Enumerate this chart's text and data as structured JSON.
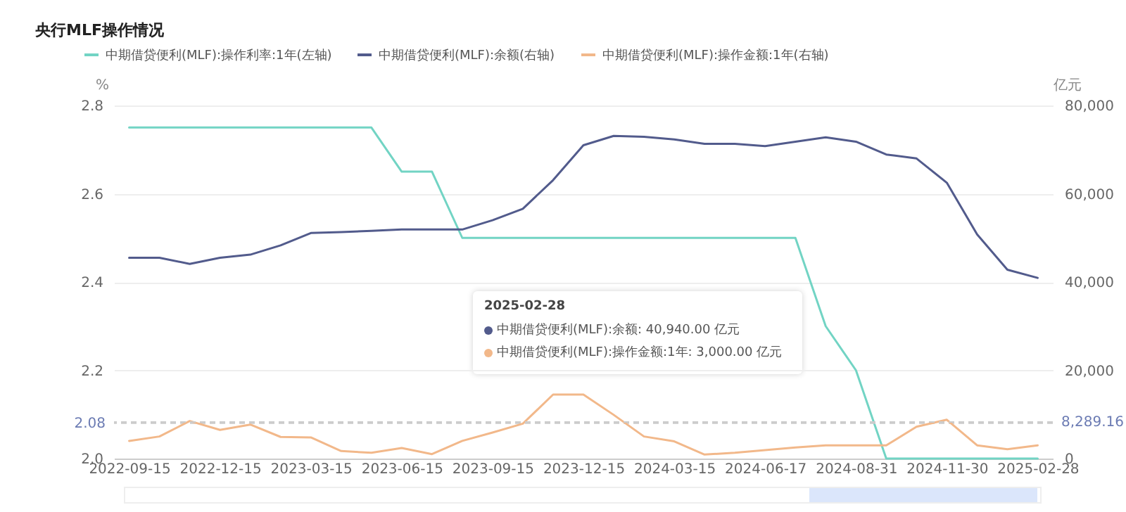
{
  "chart_data": {
    "type": "line",
    "title": "央行MLF操作情况",
    "ylabel": "%",
    "y2label": "亿元",
    "categories": [
      "2022-09-15",
      null,
      null,
      "2022-12-15",
      null,
      null,
      "2023-03-15",
      null,
      null,
      "2023-06-15",
      null,
      null,
      "2023-09-15",
      null,
      null,
      "2023-12-15",
      null,
      null,
      "2024-03-15",
      null,
      null,
      "2024-06-17",
      null,
      null,
      "2024-08-31",
      null,
      null,
      "2024-11-30",
      null,
      null,
      "2025-02-28"
    ],
    "series": [
      {
        "name": "中期借贷便利(MLF):操作利率:1年(左轴)",
        "color": "#72d4c4",
        "axis": "y",
        "values": [
          2.75,
          2.75,
          2.75,
          2.75,
          2.75,
          2.75,
          2.75,
          2.75,
          2.75,
          2.65,
          2.65,
          2.5,
          2.5,
          2.5,
          2.5,
          2.5,
          2.5,
          2.5,
          2.5,
          2.5,
          2.5,
          2.5,
          2.5,
          2.3,
          2.2,
          2.0,
          2.0,
          2.0,
          2.0,
          2.0,
          2.0
        ]
      },
      {
        "name": "中期借贷便利(MLF):余额(右轴)",
        "color": "#525b8c",
        "axis": "y2",
        "values": [
          45500,
          45500,
          44100,
          45500,
          46200,
          48300,
          51100,
          51300,
          51600,
          51900,
          51900,
          51900,
          54000,
          56600,
          63100,
          71000,
          73100,
          72900,
          72300,
          71300,
          71300,
          70800,
          71800,
          72800,
          71800,
          68900,
          68000,
          62500,
          50800,
          42800,
          40940
        ]
      },
      {
        "name": "中期借贷便利(MLF):操作金额:1年(右轴)",
        "color": "#f2b88a",
        "axis": "y2",
        "values": [
          4000,
          5000,
          8500,
          6500,
          7700,
          4900,
          4800,
          1700,
          1300,
          2400,
          1000,
          4000,
          5900,
          7900,
          14500,
          14500,
          9900,
          5000,
          3900,
          900,
          1300,
          1900,
          2500,
          3000,
          3000,
          3000,
          7200,
          8800,
          3000,
          2100,
          3000
        ]
      }
    ],
    "ylim": [
      2.0,
      2.8
    ],
    "yticks": [
      {
        "value": 2.0,
        "label": "2.0"
      },
      2.2,
      2.4,
      2.6,
      2.8
    ],
    "y2lim": [
      0,
      80000
    ],
    "y2ticks": [
      0,
      {
        "value": 20000,
        "label": "20,000"
      },
      {
        "value": 40000,
        "label": "40,000"
      },
      {
        "value": 60000,
        "label": "60,000"
      },
      {
        "value": 80000,
        "label": "80,000"
      }
    ],
    "ref_lines": [
      {
        "axis": "y",
        "value": 2.08,
        "label": "2.08",
        "line_style": "dashed"
      },
      {
        "axis": "y2",
        "value": 8289.16,
        "label": "8,289.16",
        "line_style": "dashed"
      }
    ],
    "annotations": [
      "2025-02-28",
      "中期借贷便利(MLF):余额:  40,940.00 亿元",
      "中期借贷便利(MLF):操作金额:1年:  3,000.00 亿元"
    ],
    "grid": "y",
    "legend": "top"
  }
}
